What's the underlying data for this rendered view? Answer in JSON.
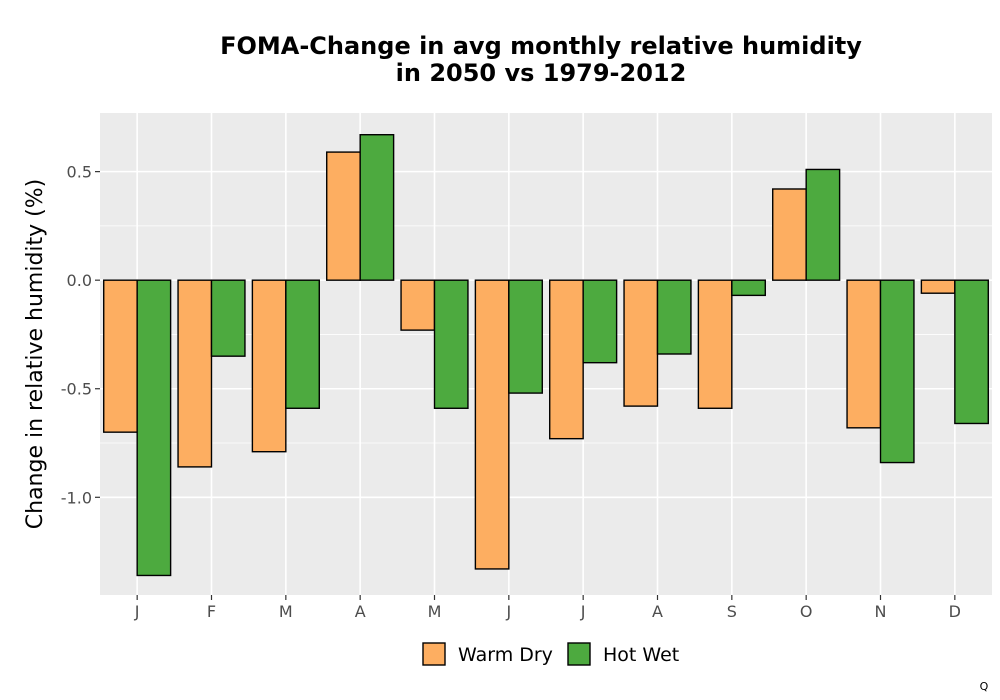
{
  "chart_data": {
    "type": "bar",
    "title_line1": "FOMA-Change in avg monthly relative humidity",
    "title_line2": "in 2050 vs 1979-2012",
    "xlabel": "",
    "ylabel": "Change in relative humidity (%)",
    "categories": [
      "J",
      "F",
      "M",
      "A",
      "M",
      "J",
      "J",
      "A",
      "S",
      "O",
      "N",
      "D"
    ],
    "series": [
      {
        "name": "Warm Dry",
        "color": "#FDAE61",
        "values": [
          -0.7,
          -0.86,
          -0.79,
          0.59,
          -0.23,
          -1.33,
          -0.73,
          -0.58,
          -0.59,
          0.42,
          -0.68,
          -0.06
        ]
      },
      {
        "name": "Hot Wet",
        "color": "#4DAA3F",
        "values": [
          -1.36,
          -0.35,
          -0.59,
          0.67,
          -0.59,
          -0.52,
          -0.38,
          -0.34,
          -0.07,
          0.51,
          -0.84,
          -0.66
        ]
      }
    ],
    "ylim": [
      -1.45,
      0.77
    ],
    "yticks": [
      0.5,
      0.0,
      -0.5,
      -1.0
    ],
    "ytick_labels": [
      "0.5",
      "0.0",
      "-0.5",
      "-1.0"
    ],
    "grid": true,
    "legend_position": "bottom",
    "panel_color": "#EBEBEB",
    "caption": "Q"
  }
}
